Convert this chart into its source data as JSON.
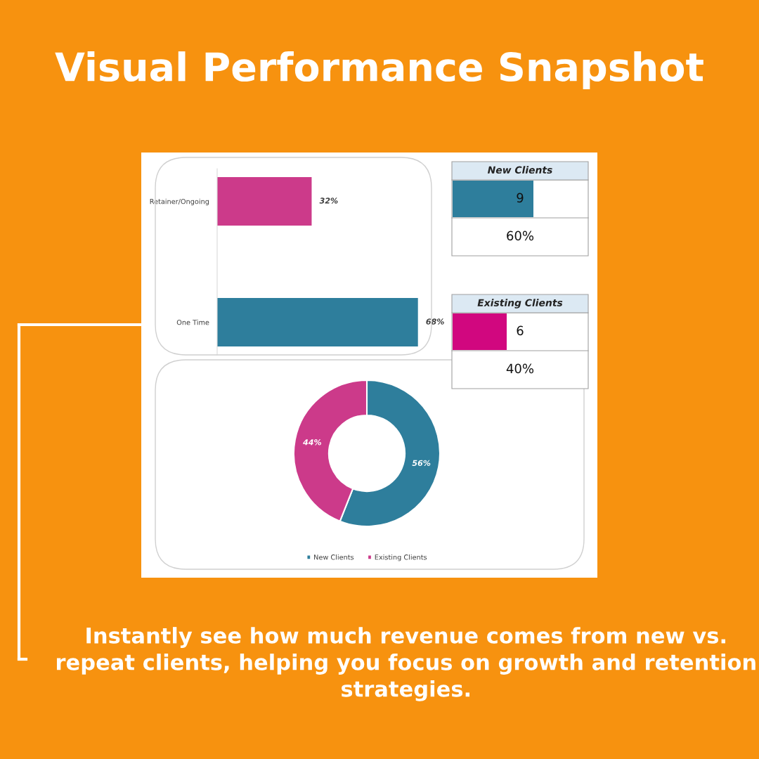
{
  "chart_data": [
    {
      "type": "bar",
      "orientation": "horizontal",
      "title": "Visual Performance Snapshot",
      "annotations": [
        "Instantly see how much revenue comes from new vs. repeat clients, helping you focus on growth and retention strategies."
      ],
      "categories": [
        "Retainer/Ongoing",
        "One Time"
      ],
      "values": [
        32,
        68
      ],
      "colors": [
        "#cc3a8a",
        "#2e7e9c"
      ],
      "value_labels": [
        "32%",
        "68%"
      ],
      "tick_labels": "y",
      "grid": false,
      "legend": false
    },
    {
      "type": "other",
      "title": "New Clients",
      "colors": [
        "#2e7e9c"
      ],
      "annotations": [
        "9",
        "60%"
      ]
    },
    {
      "type": "other",
      "title": "Existing Clients",
      "colors": [
        "#d1077f"
      ],
      "annotations": [
        "6",
        "40%"
      ]
    },
    {
      "type": "donut",
      "categories": [
        "New Clients",
        "Existing Clients"
      ],
      "values": [
        56,
        44
      ],
      "colors": [
        "#2e7e9c",
        "#cc3a8a"
      ],
      "value_labels": [
        "56%",
        "44%"
      ],
      "legend": "bottom"
    }
  ]
}
